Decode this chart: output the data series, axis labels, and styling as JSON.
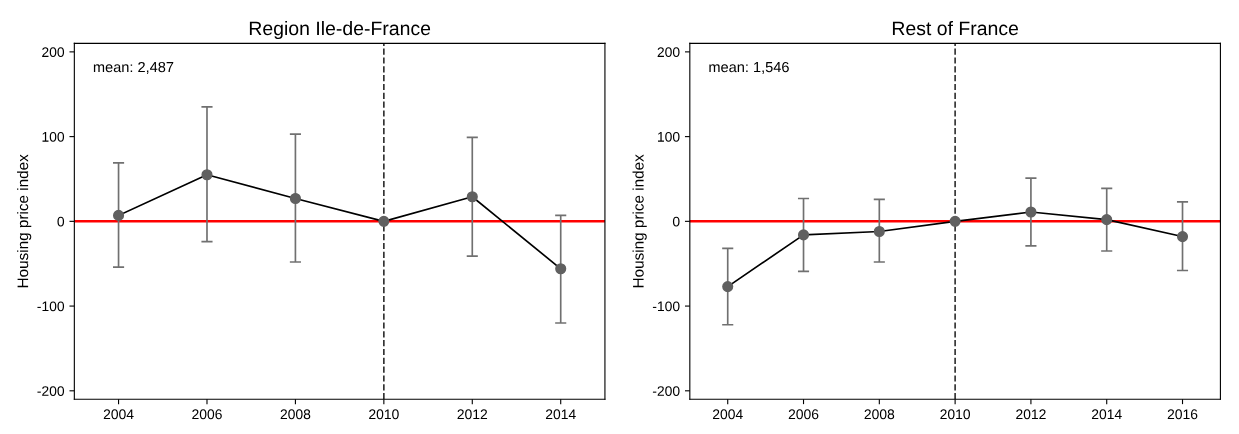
{
  "chart_data": [
    {
      "type": "line",
      "title": "Region Ile-de-France",
      "ylabel": "Housing price index",
      "x": [
        2004,
        2006,
        2008,
        2010,
        2012,
        2014
      ],
      "series": [
        {
          "color": "#000000",
          "values": [
            7,
            55,
            27,
            0,
            29,
            -56
          ],
          "errors": [
            [
              -54,
              69
            ],
            [
              -24,
              135
            ],
            [
              -48,
              103
            ],
            null,
            [
              -41,
              99
            ],
            [
              -120,
              7
            ]
          ]
        }
      ],
      "marker": "circle",
      "xlim": [
        2003,
        2015
      ],
      "xticks": [
        2004,
        2006,
        2008,
        2010,
        2012,
        2014
      ],
      "ylim": [
        -210,
        210
      ],
      "yticks": [
        -200,
        -100,
        0,
        100,
        200
      ],
      "grid": false,
      "annotations": [
        "mean: 2,487"
      ],
      "ref_lines": [
        {
          "axis": "y",
          "value": 0,
          "color": "#ff0000",
          "line_style": "solid"
        },
        {
          "axis": "x",
          "value": 2010,
          "color": "#333333",
          "line_style": "dashed"
        }
      ]
    },
    {
      "type": "line",
      "title": "Rest of France",
      "ylabel": "Housing price index",
      "x": [
        2004,
        2006,
        2008,
        2010,
        2012,
        2014,
        2016
      ],
      "series": [
        {
          "color": "#000000",
          "values": [
            -77,
            -16,
            -12,
            0,
            11,
            2,
            -18
          ],
          "errors": [
            [
              -122,
              -32
            ],
            [
              -59,
              27
            ],
            [
              -48,
              26
            ],
            null,
            [
              -29,
              51
            ],
            [
              -35,
              39
            ],
            [
              -58,
              23
            ]
          ]
        }
      ],
      "marker": "circle",
      "xlim": [
        2003,
        2017
      ],
      "xticks": [
        2004,
        2006,
        2008,
        2010,
        2012,
        2014,
        2016
      ],
      "ylim": [
        -210,
        210
      ],
      "yticks": [
        -200,
        -100,
        0,
        100,
        200
      ],
      "grid": false,
      "annotations": [
        "mean: 1,546"
      ],
      "ref_lines": [
        {
          "axis": "y",
          "value": 0,
          "color": "#ff0000",
          "line_style": "solid"
        },
        {
          "axis": "x",
          "value": 2010,
          "color": "#333333",
          "line_style": "dashed"
        }
      ]
    }
  ]
}
